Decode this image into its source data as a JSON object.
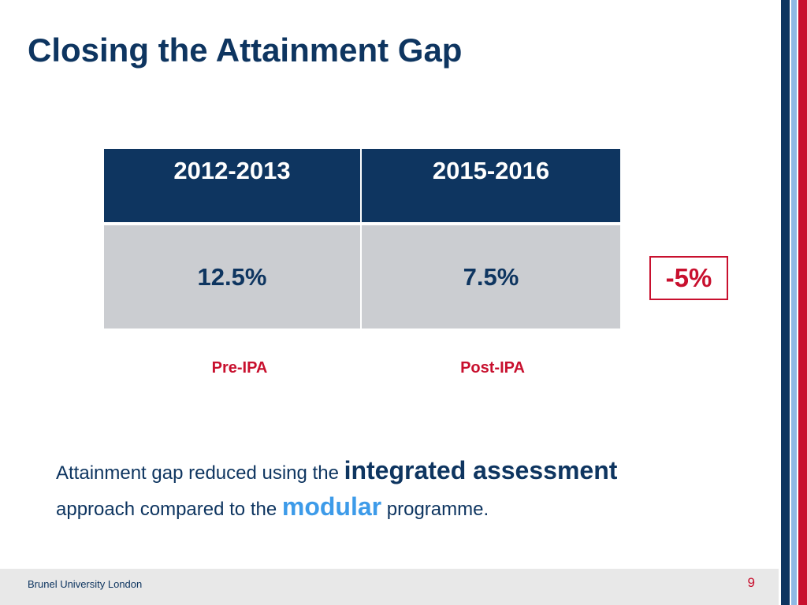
{
  "slide": {
    "title": "Closing the Attainment Gap",
    "table": {
      "headers": [
        "2012-2013",
        "2015-2016"
      ],
      "values": [
        "12.5%",
        "7.5%"
      ]
    },
    "change": "-5%",
    "periods": [
      "Pre-IPA",
      "Post-IPA"
    ],
    "summary": {
      "part1": "Attainment gap reduced using the ",
      "emphasis1": "integrated assessment",
      "part2": " approach compared to the ",
      "emphasis2": "modular",
      "part3": " programme",
      "end": "."
    }
  },
  "footer": {
    "org": "Brunel University London",
    "page_number": "9"
  },
  "colors": {
    "navy": "#0e3560",
    "red": "#c8102e",
    "light_blue": "#3d9be9",
    "cell_gray": "#cbcdd1"
  }
}
